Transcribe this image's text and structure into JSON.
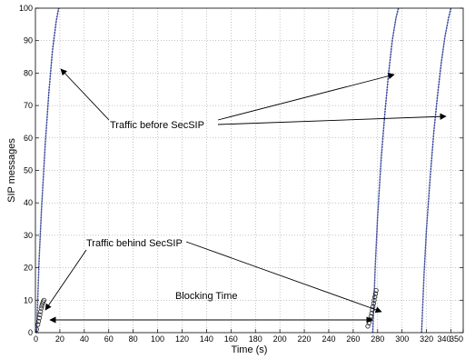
{
  "chart_data": {
    "type": "line",
    "title": "",
    "xlabel": "Time (s)",
    "ylabel": "SIP messages",
    "xlim": [
      0,
      350
    ],
    "ylim": [
      0,
      100
    ],
    "grid": true,
    "x_ticks": [
      0,
      20,
      40,
      60,
      80,
      100,
      120,
      140,
      160,
      180,
      200,
      220,
      240,
      260,
      280,
      300,
      320,
      340,
      350
    ],
    "x_tick_labels": [
      "0",
      "20",
      "40",
      "60",
      "80",
      "100",
      "120",
      "140",
      "160",
      "180",
      "200",
      "220",
      "240",
      "260",
      "280",
      "300",
      "320",
      "340",
      "350"
    ],
    "y_ticks": [
      0,
      10,
      20,
      30,
      40,
      50,
      60,
      70,
      80,
      90,
      100
    ],
    "y_tick_labels": [
      "0",
      "10",
      "20",
      "30",
      "40",
      "50",
      "60",
      "70",
      "80",
      "90",
      "100"
    ],
    "series": [
      {
        "style": "dotted",
        "color": "#3b4a9c",
        "segments": [
          [
            [
              1,
              0
            ],
            [
              3,
              22
            ],
            [
              5,
              38
            ],
            [
              8,
              58
            ],
            [
              11,
              74
            ],
            [
              14,
              87
            ],
            [
              17,
              96
            ],
            [
              19,
              100
            ]
          ],
          [
            [
              276,
              0
            ],
            [
              278,
              20
            ],
            [
              280,
              36
            ],
            [
              283,
              54
            ],
            [
              286,
              68
            ],
            [
              289,
              80
            ],
            [
              292,
              90
            ],
            [
              295,
              97
            ],
            [
              297,
              100
            ]
          ],
          [
            [
              316,
              0
            ],
            [
              318,
              18
            ],
            [
              320,
              32
            ],
            [
              323,
              48
            ],
            [
              326,
              62
            ],
            [
              329,
              73
            ],
            [
              332,
              83
            ],
            [
              335,
              91
            ],
            [
              338,
              97
            ],
            [
              340,
              100
            ]
          ]
        ]
      },
      {
        "style": "circle-markers",
        "color": "#222222",
        "segments": [
          [
            [
              0,
              0
            ],
            [
              1,
              1
            ],
            [
              2,
              2.5
            ],
            [
              2.6,
              3.5
            ],
            [
              3.2,
              4.5
            ],
            [
              3.7,
              5.5
            ],
            [
              4.2,
              6.5
            ],
            [
              4.7,
              7.5
            ],
            [
              5.2,
              8.2
            ],
            [
              5.7,
              8.9
            ],
            [
              6.3,
              9.5
            ],
            [
              7,
              10
            ]
          ],
          [
            [
              272,
              2
            ],
            [
              273,
              3
            ],
            [
              273.8,
              4
            ],
            [
              274.5,
              5
            ],
            [
              275.1,
              6
            ],
            [
              275.7,
              7
            ],
            [
              276.2,
              8
            ],
            [
              276.7,
              9
            ],
            [
              277.2,
              10
            ],
            [
              277.7,
              11
            ],
            [
              278.2,
              12
            ],
            [
              278.7,
              13
            ]
          ]
        ]
      }
    ],
    "annotations": {
      "before_label": "Traffic before SecSIP",
      "behind_label": "Traffic behind SecSIP",
      "blocking_label": "Blocking Time"
    }
  }
}
